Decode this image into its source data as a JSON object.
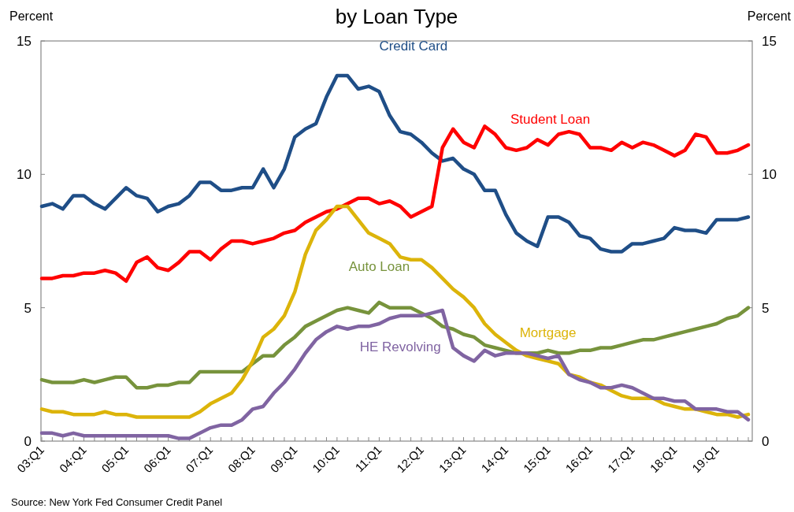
{
  "chart_data": {
    "type": "line",
    "title": "by Loan Type",
    "ylabel": "Percent",
    "y2label": "Percent",
    "categories": [
      "03:Q1",
      null,
      null,
      null,
      "04:Q1",
      null,
      null,
      null,
      "05:Q1",
      null,
      null,
      null,
      "06:Q1",
      null,
      null,
      null,
      "07:Q1",
      null,
      null,
      null,
      "08:Q1",
      null,
      null,
      null,
      "09:Q1",
      null,
      null,
      null,
      "10:Q1",
      null,
      null,
      null,
      "11:Q1",
      null,
      null,
      null,
      "12:Q1",
      null,
      null,
      null,
      "13:Q1",
      null,
      null,
      null,
      "14:Q1",
      null,
      null,
      null,
      "15:Q1",
      null,
      null,
      null,
      "16:Q1",
      null,
      null,
      null,
      "17:Q1",
      null,
      null,
      null,
      "18:Q1",
      null,
      null,
      null,
      "19:Q1",
      null,
      null,
      null
    ],
    "series": [
      {
        "name": "Credit Card",
        "color": "#1f4e87",
        "values": [
          8.8,
          8.9,
          8.7,
          9.2,
          9.2,
          8.9,
          8.7,
          9.1,
          9.5,
          9.2,
          9.1,
          8.6,
          8.8,
          8.9,
          9.2,
          9.7,
          9.7,
          9.4,
          9.4,
          9.5,
          9.5,
          10.2,
          9.5,
          10.2,
          11.4,
          11.7,
          11.9,
          12.9,
          13.7,
          13.7,
          13.2,
          13.3,
          13.1,
          12.2,
          11.6,
          11.5,
          11.2,
          10.8,
          10.5,
          10.6,
          10.2,
          10.0,
          9.4,
          9.4,
          8.5,
          7.8,
          7.5,
          7.3,
          8.4,
          8.4,
          8.2,
          7.7,
          7.6,
          7.2,
          7.1,
          7.1,
          7.4,
          7.4,
          7.5,
          7.6,
          8.0,
          7.9,
          7.9,
          7.8,
          8.3,
          8.3,
          8.3,
          8.4
        ]
      },
      {
        "name": "Student Loan",
        "color": "#ff0000",
        "values": [
          6.1,
          6.1,
          6.2,
          6.2,
          6.3,
          6.3,
          6.4,
          6.3,
          6.0,
          6.7,
          6.9,
          6.5,
          6.4,
          6.7,
          7.1,
          7.1,
          6.8,
          7.2,
          7.5,
          7.5,
          7.4,
          7.5,
          7.6,
          7.8,
          7.9,
          8.2,
          8.4,
          8.6,
          8.7,
          8.9,
          9.1,
          9.1,
          8.9,
          9.0,
          8.8,
          8.4,
          8.6,
          8.8,
          11.0,
          11.7,
          11.2,
          11.0,
          11.8,
          11.5,
          11.0,
          10.9,
          11.0,
          11.3,
          11.1,
          11.5,
          11.6,
          11.5,
          11.0,
          11.0,
          10.9,
          11.2,
          11.0,
          11.2,
          11.1,
          10.9,
          10.7,
          10.9,
          11.5,
          11.4,
          10.8,
          10.8,
          10.9,
          11.1
        ]
      },
      {
        "name": "Auto Loan",
        "color": "#77933c",
        "values": [
          2.3,
          2.2,
          2.2,
          2.2,
          2.3,
          2.2,
          2.3,
          2.4,
          2.4,
          2.0,
          2.0,
          2.1,
          2.1,
          2.2,
          2.2,
          2.6,
          2.6,
          2.6,
          2.6,
          2.6,
          2.9,
          3.2,
          3.2,
          3.6,
          3.9,
          4.3,
          4.5,
          4.7,
          4.9,
          5.0,
          4.9,
          4.8,
          5.2,
          5.0,
          5.0,
          5.0,
          4.8,
          4.6,
          4.3,
          4.2,
          4.0,
          3.9,
          3.6,
          3.5,
          3.4,
          3.3,
          3.3,
          3.3,
          3.4,
          3.3,
          3.3,
          3.4,
          3.4,
          3.5,
          3.5,
          3.6,
          3.7,
          3.8,
          3.8,
          3.9,
          4.0,
          4.1,
          4.2,
          4.3,
          4.4,
          4.6,
          4.7,
          5.0
        ]
      },
      {
        "name": "Mortgage",
        "color": "#dcb40a",
        "values": [
          1.2,
          1.1,
          1.1,
          1.0,
          1.0,
          1.0,
          1.1,
          1.0,
          1.0,
          0.9,
          0.9,
          0.9,
          0.9,
          0.9,
          0.9,
          1.1,
          1.4,
          1.6,
          1.8,
          2.3,
          3.0,
          3.9,
          4.2,
          4.7,
          5.6,
          7.0,
          7.9,
          8.3,
          8.8,
          8.8,
          8.3,
          7.8,
          7.6,
          7.4,
          6.9,
          6.8,
          6.8,
          6.5,
          6.1,
          5.7,
          5.4,
          5.0,
          4.4,
          4.0,
          3.7,
          3.4,
          3.2,
          3.1,
          3.0,
          2.9,
          2.5,
          2.4,
          2.2,
          2.1,
          1.9,
          1.7,
          1.6,
          1.6,
          1.6,
          1.4,
          1.3,
          1.2,
          1.2,
          1.1,
          1.0,
          1.0,
          0.9,
          1.0
        ]
      },
      {
        "name": "HE Revolving",
        "color": "#8064a2",
        "values": [
          0.3,
          0.3,
          0.2,
          0.3,
          0.2,
          0.2,
          0.2,
          0.2,
          0.2,
          0.2,
          0.2,
          0.2,
          0.2,
          0.1,
          0.1,
          0.3,
          0.5,
          0.6,
          0.6,
          0.8,
          1.2,
          1.3,
          1.8,
          2.2,
          2.7,
          3.3,
          3.8,
          4.1,
          4.3,
          4.2,
          4.3,
          4.3,
          4.4,
          4.6,
          4.7,
          4.7,
          4.7,
          4.8,
          4.9,
          3.5,
          3.2,
          3.0,
          3.4,
          3.2,
          3.3,
          3.3,
          3.3,
          3.2,
          3.1,
          3.2,
          2.5,
          2.3,
          2.2,
          2.0,
          2.0,
          2.1,
          2.0,
          1.8,
          1.6,
          1.6,
          1.5,
          1.5,
          1.2,
          1.2,
          1.2,
          1.1,
          1.1,
          0.8
        ]
      }
    ],
    "ylim": [
      0,
      15
    ],
    "yticks": [
      0,
      5,
      10,
      15
    ],
    "y2lim": [
      0,
      15
    ],
    "y2ticks": [
      0,
      5,
      10,
      15
    ],
    "grid": false,
    "marker": "none",
    "line_style": "solid",
    "annotations": [
      "Source: New York Fed Consumer Credit Panel"
    ]
  }
}
